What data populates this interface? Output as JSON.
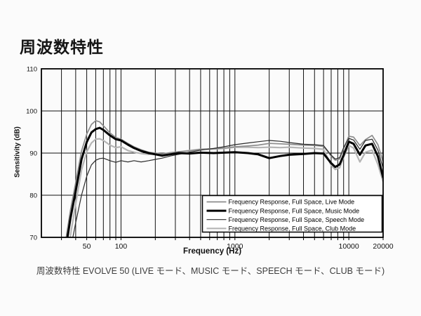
{
  "page": {
    "title": "周波数特性",
    "caption": "周波数特性 EVOLVE 50 (LIVE モード、MUSIC モード、SPEECH モード、CLUB モード)"
  },
  "chart_data": {
    "type": "line",
    "xlabel": "Frequency (Hz)",
    "ylabel": "Sensitivity (dB)",
    "x_scale": "log",
    "xlim": [
      20,
      20000
    ],
    "ylim": [
      70,
      110
    ],
    "y_ticks": [
      110,
      100,
      90,
      80,
      70
    ],
    "x_tick_labels": [
      50,
      100,
      1000,
      10000,
      20000
    ],
    "grid": true,
    "legend_position": "lower-right",
    "axis_color": "#000000",
    "grid_color": "#111111",
    "frequencies": [
      30,
      33,
      36,
      40,
      45,
      50,
      55,
      60,
      65,
      70,
      80,
      90,
      100,
      115,
      130,
      150,
      175,
      200,
      230,
      270,
      320,
      400,
      500,
      650,
      800,
      1000,
      1300,
      1600,
      2000,
      2500,
      3000,
      4000,
      5000,
      6000,
      7000,
      7600,
      8300,
      9000,
      10000,
      11000,
      12500,
      14000,
      16000,
      18000,
      20000
    ],
    "series": [
      {
        "name": "Frequency Response, Full Space, Live Mode",
        "color": "#8c8c8c",
        "width": 1.7,
        "values": [
          64.0,
          70.0,
          76.5,
          83.0,
          90.5,
          94.5,
          96.8,
          97.7,
          97.4,
          96.5,
          94.8,
          93.7,
          93.3,
          92.3,
          91.5,
          90.8,
          90.2,
          90.0,
          89.8,
          90.1,
          90.3,
          90.5,
          90.9,
          91.0,
          91.2,
          91.5,
          91.7,
          91.9,
          92.3,
          92.2,
          92.1,
          91.9,
          91.8,
          91.6,
          89.3,
          88.3,
          88.6,
          91.0,
          94.0,
          93.8,
          91.8,
          93.2,
          94.2,
          92.0,
          87.9
        ]
      },
      {
        "name": "Frequency Response, Full Space, Music Mode",
        "color": "#000000",
        "width": 3.0,
        "values": [
          62.0,
          68.0,
          74.5,
          81.0,
          88.5,
          92.6,
          94.9,
          95.7,
          96.0,
          95.5,
          94.2,
          93.3,
          93.0,
          92.0,
          91.2,
          90.5,
          90.0,
          89.7,
          89.4,
          89.7,
          90.0,
          89.9,
          90.1,
          90.0,
          90.1,
          90.2,
          90.0,
          89.7,
          88.8,
          89.3,
          89.6,
          89.8,
          90.0,
          89.9,
          87.6,
          86.7,
          87.3,
          89.5,
          92.7,
          92.2,
          89.6,
          91.8,
          92.2,
          89.2,
          84.2
        ]
      },
      {
        "name": "Frequency Response, Full Space, Speech Mode",
        "color": "#2b2b2b",
        "width": 1.2,
        "values": [
          56.0,
          61.0,
          67.0,
          73.5,
          80.0,
          84.5,
          87.2,
          88.3,
          88.7,
          88.8,
          88.2,
          87.8,
          88.2,
          87.9,
          88.2,
          87.9,
          88.2,
          88.5,
          88.8,
          89.3,
          89.7,
          90.2,
          90.7,
          91.1,
          91.5,
          92.0,
          92.4,
          92.7,
          93.0,
          92.8,
          92.5,
          92.1,
          92.0,
          91.8,
          89.5,
          88.6,
          88.9,
          91.3,
          93.5,
          93.1,
          90.9,
          93.0,
          93.3,
          90.7,
          86.4
        ]
      },
      {
        "name": "Frequency Response, Full Space, Club Mode",
        "color": "#b5b5b5",
        "width": 2.2,
        "values": [
          58.0,
          64.0,
          70.5,
          78.0,
          86.0,
          90.3,
          92.4,
          93.3,
          93.4,
          93.0,
          91.9,
          91.3,
          91.5,
          90.6,
          90.2,
          89.9,
          89.7,
          89.8,
          89.7,
          90.0,
          90.3,
          90.6,
          90.9,
          91.0,
          91.1,
          91.4,
          91.4,
          91.3,
          91.4,
          91.3,
          91.4,
          91.2,
          91.1,
          90.9,
          87.1,
          86.1,
          86.5,
          89.0,
          91.8,
          91.2,
          87.9,
          90.2,
          90.7,
          87.3,
          83.2
        ]
      }
    ]
  }
}
